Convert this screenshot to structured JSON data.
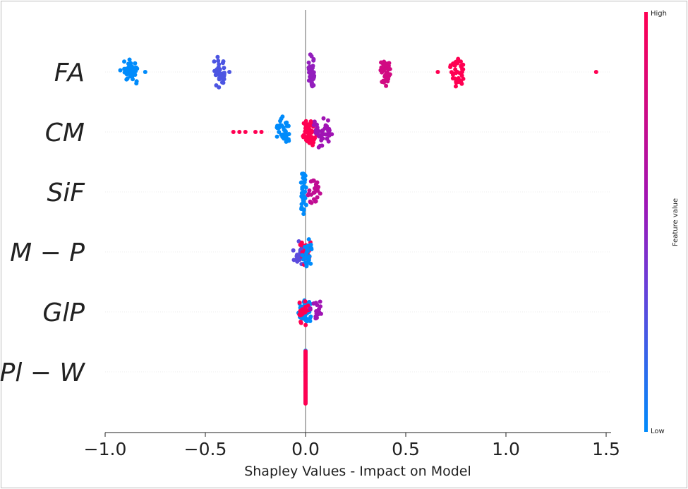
{
  "chart_data": {
    "type": "scatter",
    "subtype": "beeswarm",
    "title": "",
    "xlabel": "Shapley Values - Impact on Model",
    "ylabel": "",
    "xlim": [
      -1.05,
      1.6
    ],
    "xticks": [
      -1.0,
      -0.5,
      0.0,
      0.5,
      1.0,
      1.5
    ],
    "xtick_labels": [
      "−1.0",
      "−0.5",
      "0.0",
      "0.5",
      "1.0",
      "1.5"
    ],
    "grid": false,
    "features": [
      "FA",
      "CM",
      "SiF",
      "M − P",
      "GlP",
      "Pl − W"
    ],
    "colorbar": {
      "label": "Feature value",
      "high": "High",
      "low": "Low",
      "colors": [
        "#008bfb",
        "#7b3fd6",
        "#a414b0",
        "#ff0052"
      ]
    },
    "clusters": [
      {
        "feature": "FA",
        "shap": -0.88,
        "spread": 0.03,
        "count": 40,
        "feature_value": 0.0
      },
      {
        "feature": "FA",
        "shap": -0.8,
        "spread": 0,
        "count": 1,
        "feature_value": 0.0
      },
      {
        "feature": "FA",
        "shap": -0.43,
        "spread": 0.02,
        "count": 36,
        "feature_value": 0.25
      },
      {
        "feature": "FA",
        "shap": -0.38,
        "spread": 0,
        "count": 1,
        "feature_value": 0.25
      },
      {
        "feature": "FA",
        "shap": 0.03,
        "spread": 0.01,
        "count": 42,
        "feature_value": 0.5
      },
      {
        "feature": "FA",
        "shap": 0.4,
        "spread": 0.02,
        "count": 36,
        "feature_value": 0.78
      },
      {
        "feature": "FA",
        "shap": 0.66,
        "spread": 0,
        "count": 1,
        "feature_value": 1.0
      },
      {
        "feature": "FA",
        "shap": 0.76,
        "spread": 0.03,
        "count": 42,
        "feature_value": 1.0
      },
      {
        "feature": "FA",
        "shap": 1.45,
        "spread": 0,
        "count": 1,
        "feature_value": 1.0
      },
      {
        "feature": "CM",
        "shap": -0.36,
        "spread": 0,
        "count": 1,
        "feature_value": 1.0
      },
      {
        "feature": "CM",
        "shap": -0.33,
        "spread": 0,
        "count": 1,
        "feature_value": 1.0
      },
      {
        "feature": "CM",
        "shap": -0.3,
        "spread": 0,
        "count": 1,
        "feature_value": 1.0
      },
      {
        "feature": "CM",
        "shap": -0.25,
        "spread": 0,
        "count": 1,
        "feature_value": 1.0
      },
      {
        "feature": "CM",
        "shap": -0.22,
        "spread": 0,
        "count": 1,
        "feature_value": 1.0
      },
      {
        "feature": "CM",
        "shap": -0.11,
        "spread": 0.025,
        "count": 34,
        "feature_value": 0.0
      },
      {
        "feature": "CM",
        "shap": 0.02,
        "spread": 0.025,
        "count": 60,
        "feature_value": 1.0
      },
      {
        "feature": "CM",
        "shap": 0.08,
        "spread": 0.04,
        "count": 45,
        "feature_value": 0.55
      },
      {
        "feature": "SiF",
        "shap": -0.01,
        "spread": 0.01,
        "count": 40,
        "feature_value": 0.0
      },
      {
        "feature": "SiF",
        "shap": 0.04,
        "spread": 0.025,
        "count": 26,
        "feature_value": 0.7
      },
      {
        "feature": "M − P",
        "shap": -0.02,
        "spread": 0.03,
        "count": 30,
        "feature_value": 0.3
      },
      {
        "feature": "M − P",
        "shap": 0.0,
        "spread": 0.02,
        "count": 25,
        "feature_value": 1.0
      },
      {
        "feature": "M − P",
        "shap": 0.01,
        "spread": 0.02,
        "count": 25,
        "feature_value": 0.0
      },
      {
        "feature": "GlP",
        "shap": 0.0,
        "spread": 0.025,
        "count": 40,
        "feature_value": 0.0
      },
      {
        "feature": "GlP",
        "shap": -0.01,
        "spread": 0.02,
        "count": 20,
        "feature_value": 1.0
      },
      {
        "feature": "GlP",
        "shap": 0.06,
        "spread": 0.025,
        "count": 20,
        "feature_value": 0.55
      },
      {
        "feature": "Pl − W",
        "shap": 0.0,
        "spread": 0,
        "count": 35,
        "feature_value": 0.0
      },
      {
        "feature": "Pl − W",
        "shap": 0.0,
        "spread": 0,
        "count": 35,
        "feature_value": 1.0
      }
    ]
  }
}
